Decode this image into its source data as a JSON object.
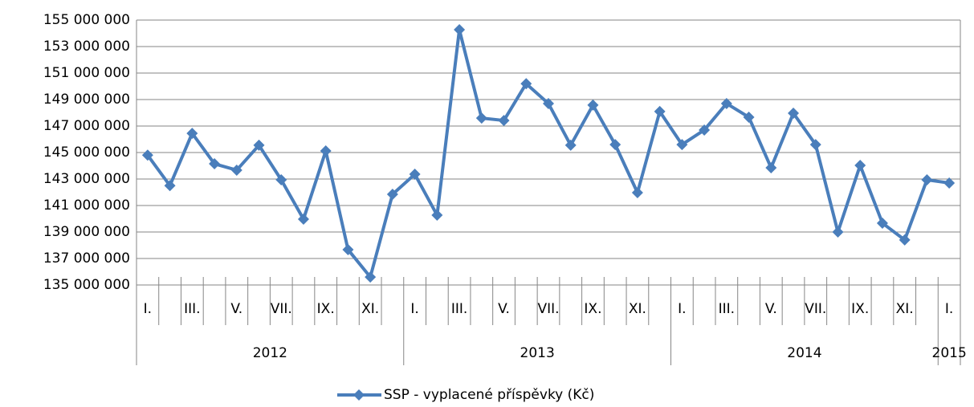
{
  "chart_data": {
    "type": "line",
    "categories": [
      "I.",
      null,
      "III.",
      null,
      "V.",
      null,
      "VII.",
      null,
      "IX.",
      null,
      "XI.",
      null,
      "I.",
      null,
      "III.",
      null,
      "V.",
      null,
      "VII.",
      null,
      "IX.",
      null,
      "XI.",
      null,
      "I.",
      null,
      "III.",
      null,
      "V.",
      null,
      "VII.",
      null,
      "IX.",
      null,
      "XI.",
      null,
      "I."
    ],
    "years": [
      "2012",
      "2013",
      "2014",
      "2015"
    ],
    "series": [
      {
        "name": "SSP - vyplacené příspěvky (Kč)",
        "color": "#4a7ebb",
        "values": [
          144800000,
          142500000,
          146450000,
          144150000,
          143670000,
          145550000,
          142940000,
          139970000,
          145120000,
          137670000,
          135600000,
          141850000,
          143360000,
          140270000,
          154270000,
          147600000,
          147420000,
          150200000,
          148700000,
          145550000,
          148580000,
          145600000,
          141970000,
          148100000,
          145600000,
          146700000,
          148700000,
          147670000,
          143850000,
          147970000,
          145600000,
          139000000,
          144030000,
          139670000,
          138400000,
          142940000,
          142700000
        ]
      }
    ],
    "ylim": [
      135000000,
      155000000
    ],
    "yticks": [
      {
        "value": 135000000,
        "label": "135 000 000"
      },
      {
        "value": 137000000,
        "label": "137 000 000"
      },
      {
        "value": 139000000,
        "label": "139 000 000"
      },
      {
        "value": 141000000,
        "label": "141 000 000"
      },
      {
        "value": 143000000,
        "label": "143 000 000"
      },
      {
        "value": 145000000,
        "label": "145 000 000"
      },
      {
        "value": 147000000,
        "label": "147 000 000"
      },
      {
        "value": 149000000,
        "label": "149 000 000"
      },
      {
        "value": 151000000,
        "label": "151 000 000"
      },
      {
        "value": 153000000,
        "label": "153 000 000"
      },
      {
        "value": 155000000,
        "label": "155 000 000"
      }
    ],
    "grid": true,
    "legend": "bottom"
  }
}
